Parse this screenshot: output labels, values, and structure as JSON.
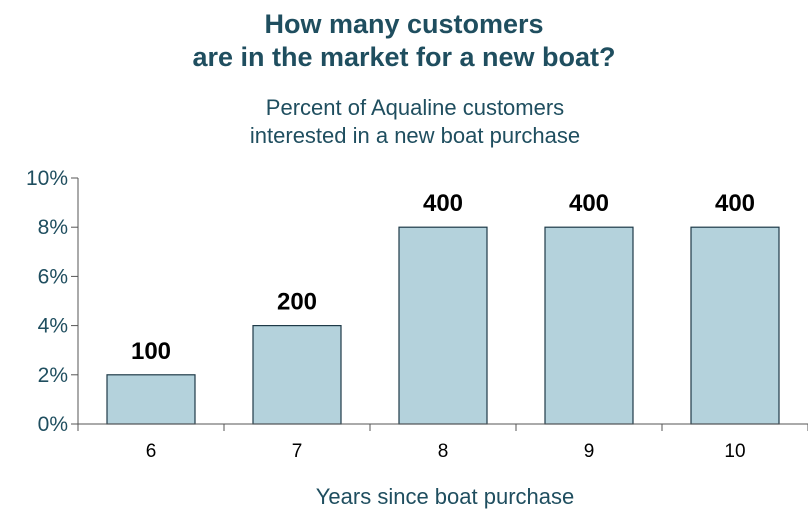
{
  "chart_data": {
    "type": "bar",
    "title": [
      "How many customers",
      "are in the market for a new boat?"
    ],
    "subtitle": [
      "Percent of Aqualine customers",
      "interested in a new boat purchase"
    ],
    "xlabel": "Years since boat purchase",
    "ylabel": "",
    "categories": [
      "6",
      "7",
      "8",
      "9",
      "10"
    ],
    "values": [
      2,
      4,
      8,
      8,
      8
    ],
    "data_labels": [
      "100",
      "200",
      "400",
      "400",
      "400"
    ],
    "ylim": [
      0,
      10
    ],
    "yticks": [
      0,
      2,
      4,
      6,
      8,
      10
    ],
    "ytick_format": "%",
    "grid": false,
    "bar_color": "#b4d2dc",
    "bar_edge_color": "#1e3a48"
  }
}
